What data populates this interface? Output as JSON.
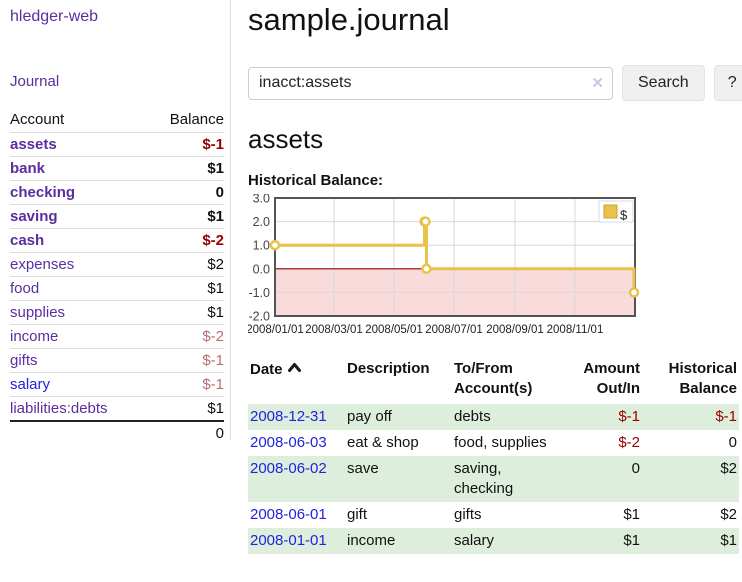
{
  "app": {
    "brand": "hledger-web"
  },
  "sidebar": {
    "journal_link": "Journal",
    "accounts_header": {
      "account": "Account",
      "balance": "Balance"
    },
    "accounts": [
      {
        "name": "assets",
        "balance": "$-1"
      },
      {
        "name": "bank",
        "balance": "$1"
      },
      {
        "name": "checking",
        "balance": "0"
      },
      {
        "name": "saving",
        "balance": "$1"
      },
      {
        "name": "cash",
        "balance": "$-2"
      },
      {
        "name": "expenses",
        "balance": "$2"
      },
      {
        "name": "food",
        "balance": "$1"
      },
      {
        "name": "supplies",
        "balance": "$1"
      },
      {
        "name": "income",
        "balance": "$-2"
      },
      {
        "name": "gifts",
        "balance": "$-1"
      },
      {
        "name": "salary",
        "balance": "$-1"
      },
      {
        "name": "liabilities:debts",
        "balance": "$1"
      }
    ],
    "total": "0"
  },
  "header": {
    "title": "sample.journal"
  },
  "search": {
    "value": "inacct:assets",
    "clear_icon": "✕",
    "button_label": "Search",
    "help_label": "?"
  },
  "account_page": {
    "title": "assets",
    "chart_label": "Historical Balance:"
  },
  "chart_data": {
    "type": "line",
    "step": true,
    "title": "Historical Balance",
    "xlabel": "",
    "ylabel": "",
    "ylim": [
      -2.0,
      3.0
    ],
    "x_range_days": [
      0,
      366
    ],
    "grid": true,
    "legend_position": "top-right",
    "series": [
      {
        "name": "$",
        "color": "#e8c24a",
        "points": [
          {
            "date": "2008-01-01",
            "day": 0,
            "value": 1
          },
          {
            "date": "2008-06-01",
            "day": 152,
            "value": 2
          },
          {
            "date": "2008-06-02",
            "day": 153,
            "value": 2
          },
          {
            "date": "2008-06-03",
            "day": 154,
            "value": 0
          },
          {
            "date": "2008-12-31",
            "day": 365,
            "value": -1
          }
        ]
      }
    ],
    "y_ticks": [
      {
        "value": 3.0,
        "label": "3.0"
      },
      {
        "value": 2.0,
        "label": "2.0"
      },
      {
        "value": 1.0,
        "label": "1.0"
      },
      {
        "value": 0.0,
        "label": "0.0"
      },
      {
        "value": -1.0,
        "label": "-1.0"
      },
      {
        "value": -2.0,
        "label": "-2.0"
      }
    ],
    "x_ticks": [
      {
        "day": 0,
        "label": "2008/01/01"
      },
      {
        "day": 60,
        "label": "2008/03/01"
      },
      {
        "day": 121,
        "label": "2008/05/01"
      },
      {
        "day": 182,
        "label": "2008/07/01"
      },
      {
        "day": 244,
        "label": "2008/09/01"
      },
      {
        "day": 305,
        "label": "2008/11/01"
      }
    ],
    "colors": {
      "grid": "#d8d8d8",
      "frame": "#545454",
      "zero_line": "#8b0000",
      "negative_region": "#f9dbdb",
      "marker_fill": "#ffffff",
      "legend_swatch_border": "#caa52c"
    }
  },
  "transactions": {
    "headers": {
      "date": "Date",
      "description": "Description",
      "tofrom_line1": "To/From",
      "tofrom_line2": "Account(s)",
      "amount_line1": "Amount",
      "amount_line2": "Out/In",
      "balance_line1": "Historical",
      "balance_line2": "Balance"
    },
    "rows": [
      {
        "date": "2008-12-31",
        "description": "pay off",
        "accounts": "debts",
        "amount": "$-1",
        "balance": "$-1"
      },
      {
        "date": "2008-06-03",
        "description": "eat & shop",
        "accounts": "food, supplies",
        "amount": "$-2",
        "balance": "0"
      },
      {
        "date": "2008-06-02",
        "description": "save",
        "accounts": "saving, checking",
        "amount": "0",
        "balance": "$2"
      },
      {
        "date": "2008-06-01",
        "description": "gift",
        "accounts": "gifts",
        "amount": "$1",
        "balance": "$2"
      },
      {
        "date": "2008-01-01",
        "description": "income",
        "accounts": "salary",
        "amount": "$1",
        "balance": "$1"
      }
    ]
  }
}
